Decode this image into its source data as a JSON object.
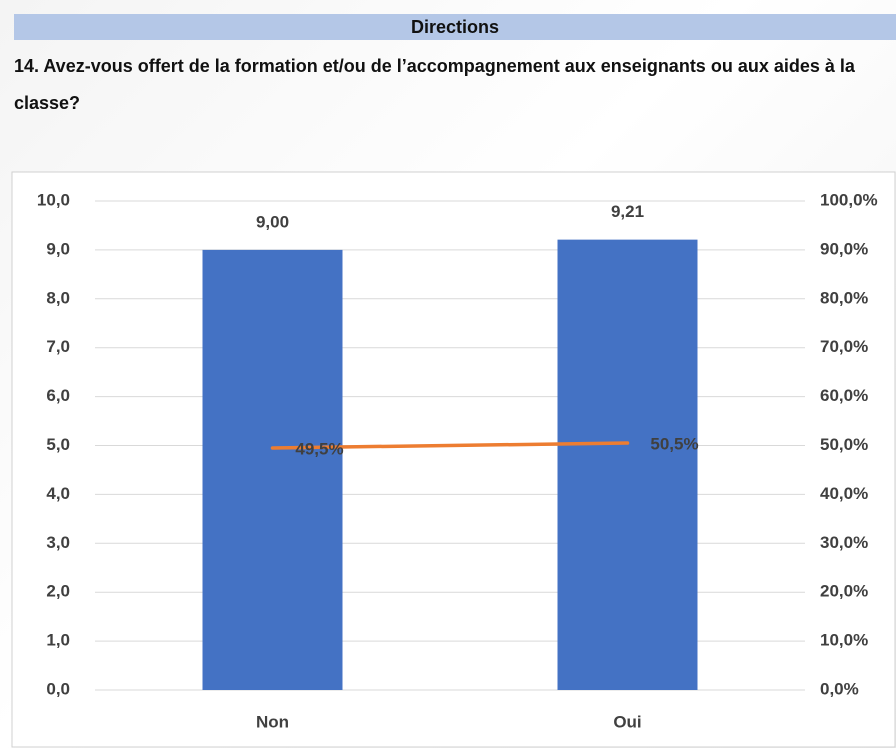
{
  "header": "Directions",
  "chart_data": {
    "type": "bar",
    "title": "14. Avez-vous offert de la formation et/ou de l’accompagnement aux enseignants ou aux aides à la classe?",
    "categories": [
      "Non",
      "Oui"
    ],
    "series": [
      {
        "type": "bar",
        "color": "#4472c4",
        "values": [
          9,
          9.21
        ],
        "value_labels": [
          "9,00",
          "9,21"
        ]
      },
      {
        "type": "line",
        "axis": "y2",
        "color": "#ed7d31",
        "values": [
          49.5,
          50.5
        ],
        "value_labels": [
          "49,5%",
          "50,5%"
        ]
      }
    ],
    "ylim": [
      0,
      10
    ],
    "yticks": [
      {
        "value": 0,
        "label": "0,0"
      },
      {
        "value": 1,
        "label": "1,0"
      },
      {
        "value": 2,
        "label": "2,0"
      },
      {
        "value": 3,
        "label": "3,0"
      },
      {
        "value": 4,
        "label": "4,0"
      },
      {
        "value": 5,
        "label": "5,0"
      },
      {
        "value": 6,
        "label": "6,0"
      },
      {
        "value": 7,
        "label": "7,0"
      },
      {
        "value": 8,
        "label": "8,0"
      },
      {
        "value": 9,
        "label": "9,0"
      },
      {
        "value": 10,
        "label": "10,0"
      }
    ],
    "y2lim": [
      0,
      100
    ],
    "y2ticks": [
      {
        "value": 0,
        "label": "0,0%"
      },
      {
        "value": 10,
        "label": "10,0%"
      },
      {
        "value": 20,
        "label": "20,0%"
      },
      {
        "value": 30,
        "label": "30,0%"
      },
      {
        "value": 40,
        "label": "40,0%"
      },
      {
        "value": 50,
        "label": "50,0%"
      },
      {
        "value": 60,
        "label": "60,0%"
      },
      {
        "value": 70,
        "label": "70,0%"
      },
      {
        "value": 80,
        "label": "80,0%"
      },
      {
        "value": 90,
        "label": "90,0%"
      },
      {
        "value": 100,
        "label": "100,0%"
      }
    ],
    "grid": true
  }
}
